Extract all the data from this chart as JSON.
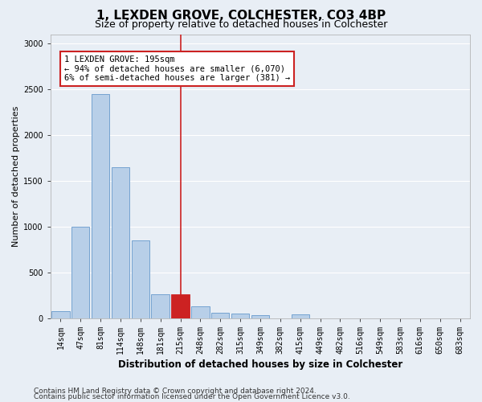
{
  "title": "1, LEXDEN GROVE, COLCHESTER, CO3 4BP",
  "subtitle": "Size of property relative to detached houses in Colchester",
  "xlabel": "Distribution of detached houses by size in Colchester",
  "ylabel": "Number of detached properties",
  "footer_line1": "Contains HM Land Registry data © Crown copyright and database right 2024.",
  "footer_line2": "Contains public sector information licensed under the Open Government Licence v3.0.",
  "bar_labels": [
    "14sqm",
    "47sqm",
    "81sqm",
    "114sqm",
    "148sqm",
    "181sqm",
    "215sqm",
    "248sqm",
    "282sqm",
    "315sqm",
    "349sqm",
    "382sqm",
    "415sqm",
    "449sqm",
    "482sqm",
    "516sqm",
    "549sqm",
    "583sqm",
    "616sqm",
    "650sqm",
    "683sqm"
  ],
  "bar_values": [
    75,
    1000,
    2450,
    1650,
    850,
    265,
    265,
    130,
    60,
    55,
    30,
    0,
    40,
    0,
    0,
    0,
    0,
    0,
    0,
    0,
    0
  ],
  "bar_color": "#b8cfe8",
  "bar_edge_color": "#6699cc",
  "highlight_bar_index": 6,
  "highlight_bar_color": "#cc2222",
  "highlight_bar_edge_color": "#cc2222",
  "vline_x": 6.0,
  "vline_color": "#cc2222",
  "annotation_text": "1 LEXDEN GROVE: 195sqm\n← 94% of detached houses are smaller (6,070)\n6% of semi-detached houses are larger (381) →",
  "annotation_box_color": "#cc2222",
  "ylim": [
    0,
    3100
  ],
  "yticks": [
    0,
    500,
    1000,
    1500,
    2000,
    2500,
    3000
  ],
  "bg_color": "#e8eef5",
  "grid_color": "#ffffff",
  "title_fontsize": 11,
  "subtitle_fontsize": 9,
  "axis_label_fontsize": 8,
  "tick_fontsize": 7,
  "footer_fontsize": 6.5
}
